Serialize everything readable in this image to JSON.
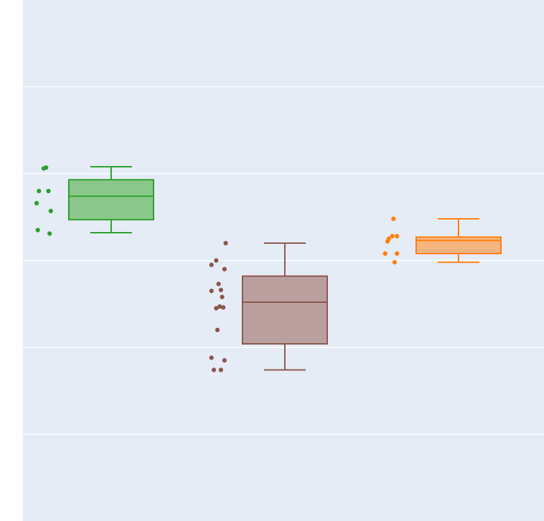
{
  "chart_data": {
    "type": "box",
    "title": "",
    "xlabel": "",
    "ylabel": "",
    "ylim": [
      0,
      6
    ],
    "grid": true,
    "legend": "none",
    "background": "#e5ecf6",
    "gridline_color": "#ffffff",
    "series": [
      {
        "color": "#2ca02c",
        "fill": "#8bc78b",
        "whisker_low": 4.32,
        "q1": 4.47,
        "median": 4.74,
        "q3": 4.93,
        "whisker_high": 5.08,
        "points": [
          5.06,
          5.07,
          4.8,
          4.8,
          4.66,
          4.57,
          4.35,
          4.31
        ]
      },
      {
        "color": "#8c564b",
        "fill": "#b9a09e",
        "whisker_low": 2.74,
        "q1": 3.04,
        "median": 3.52,
        "q3": 3.82,
        "whisker_high": 4.2,
        "points": [
          4.2,
          4.0,
          3.95,
          3.9,
          3.73,
          3.66,
          3.65,
          3.58,
          3.47,
          3.46,
          3.45,
          3.2,
          2.88,
          2.85,
          2.74,
          2.74
        ]
      },
      {
        "color": "#ff7f0e",
        "fill": "#f5b581",
        "whisker_low": 3.98,
        "q1": 4.08,
        "median": 4.23,
        "q3": 4.27,
        "whisker_high": 4.48,
        "points": [
          4.48,
          4.28,
          4.28,
          4.25,
          4.22,
          4.08,
          4.08,
          3.98
        ]
      }
    ]
  }
}
